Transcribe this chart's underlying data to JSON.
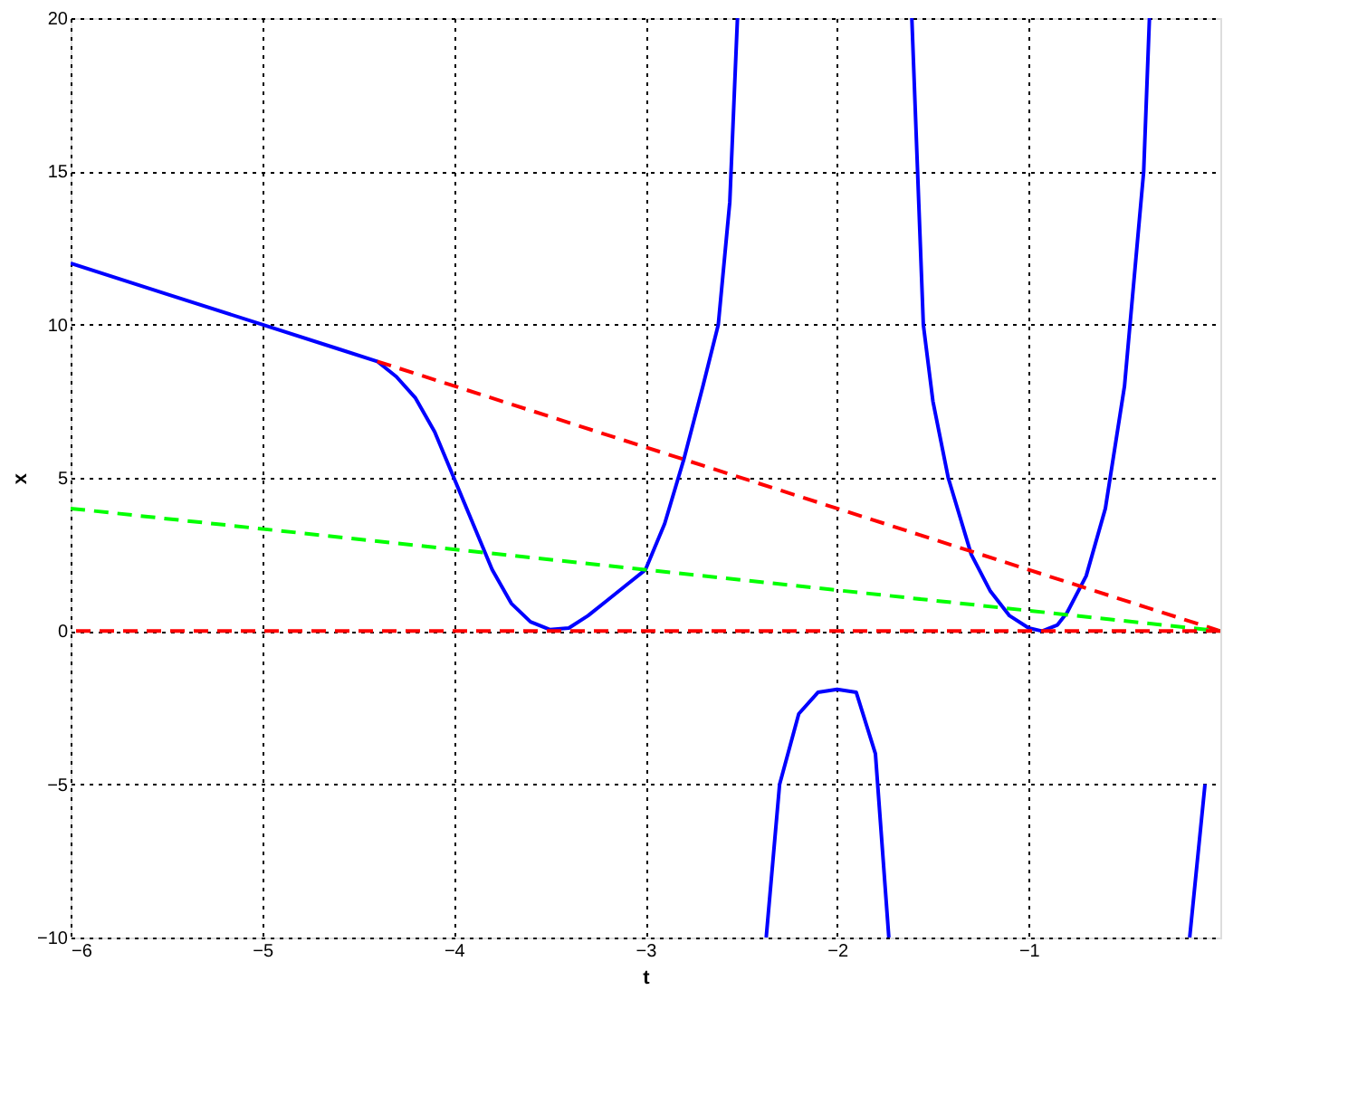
{
  "chart_data": {
    "type": "line",
    "xlabel": "t",
    "ylabel": "x",
    "xlim": [
      -6,
      0
    ],
    "xticks": [
      -6,
      -5,
      -4,
      -3,
      -2,
      -1
    ],
    "ylim": [
      -10,
      20
    ],
    "yticks": [
      -10,
      -5,
      0,
      5,
      10,
      15,
      20
    ],
    "grid": true,
    "legend": false,
    "marker": "none",
    "series": [
      {
        "color": "#0000ff",
        "line_style": "solid",
        "x": [
          -6,
          -5.5,
          -5,
          -4.6,
          -4.4,
          -4.3,
          -4.2,
          -4.1,
          -4,
          -3.9,
          -3.8,
          -3.7,
          -3.6,
          -3.5,
          -3.4,
          -3.3,
          -3.2,
          -3.1,
          -3,
          -2.9,
          -2.8,
          -2.7,
          -2.62,
          -2.56,
          -2.52,
          -2.45,
          -2.37,
          -2.3,
          -2.2,
          -2.1,
          -2,
          -1.9,
          -1.8,
          -1.73,
          -1.67,
          -1.61,
          -1.55,
          -1.5,
          -1.42,
          -1.3,
          -1.2,
          -1.1,
          -1,
          -0.93,
          -0.85,
          -0.8,
          -0.7,
          -0.6,
          -0.5,
          -0.4,
          -0.37,
          -0.25,
          -0.16,
          -0.08
        ],
        "values": [
          12,
          11,
          10,
          9.2,
          8.8,
          8.3,
          7.6,
          6.5,
          5,
          3.5,
          2,
          0.9,
          0.3,
          0.05,
          0.1,
          0.5,
          1.0,
          1.5,
          2,
          3.5,
          5.6,
          8,
          10,
          14,
          20,
          null,
          -10,
          -5,
          -2.7,
          -2,
          -1.9,
          -2,
          -4,
          -10,
          null,
          20,
          10,
          7.5,
          5,
          2.5,
          1.3,
          0.5,
          0.1,
          0,
          0.2,
          0.6,
          1.8,
          4,
          8,
          15,
          20,
          null,
          -10,
          -5
        ]
      },
      {
        "color": "#ff0000",
        "line_style": "dashed",
        "x": [
          -4.4,
          0
        ],
        "values": [
          8.8,
          0
        ]
      },
      {
        "color": "#00ff00",
        "line_style": "dashed",
        "x": [
          -6,
          0
        ],
        "values": [
          4,
          0
        ]
      }
    ],
    "ref_lines": [
      {
        "axis": "y",
        "value": 0,
        "color": "#ff0000",
        "line_style": "dashed"
      }
    ]
  }
}
